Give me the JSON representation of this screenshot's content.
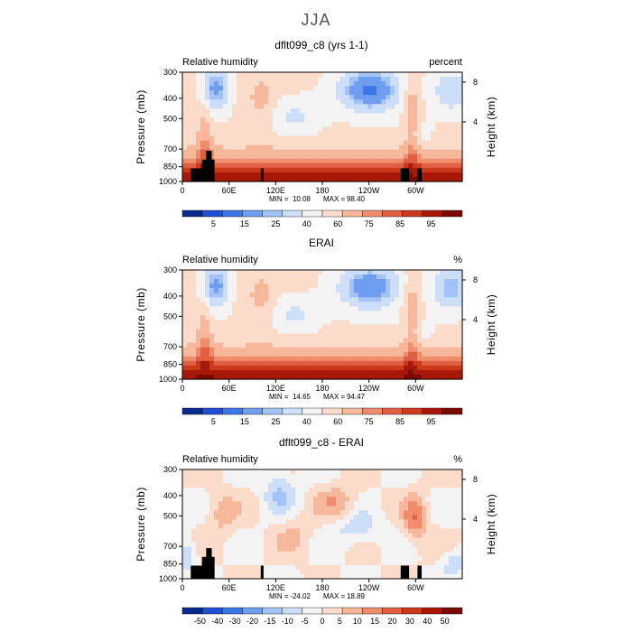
{
  "figure_title": "JJA",
  "colors": {
    "abs_palette": [
      "#0a2a8c",
      "#1f4fd0",
      "#3d77e6",
      "#6f9ef0",
      "#a3c2f5",
      "#cddff8",
      "#f3f3f3",
      "#fbdccb",
      "#f6b79a",
      "#ee8c6c",
      "#e05f42",
      "#cc3a1e",
      "#a81808",
      "#7a0a02"
    ],
    "diff_palette": [
      "#0a2a8c",
      "#1f4fd0",
      "#3d77e6",
      "#6f9ef0",
      "#a3c2f5",
      "#cddff8",
      "#f3f3f3",
      "#fbdccb",
      "#f6b79a",
      "#ee8c6c",
      "#e05f42",
      "#cc3a1e",
      "#a81808",
      "#7a0a02"
    ],
    "terrain": "#000000"
  },
  "chart_data": [
    {
      "type": "heatmap",
      "title": "dflt099_c8 (yrs 1-1)",
      "left_label": "Relative humidity",
      "right_label": "percent",
      "ylabel": "Pressure (mb)",
      "y2label": "Height (km)",
      "x_ticks": [
        "0",
        "60E",
        "120E",
        "180",
        "120W",
        "60W"
      ],
      "y_ticks": [
        "300",
        "400",
        "500",
        "700",
        "850",
        "1000"
      ],
      "y2_ticks": [
        "8",
        "4"
      ],
      "stats": {
        "min_label": "MIN =",
        "min": "10.08",
        "max_label": "MAX =",
        "max": "98.40"
      },
      "colorbar_labels": [
        "5",
        "15",
        "25",
        "40",
        "60",
        "75",
        "85",
        "95"
      ]
    },
    {
      "type": "heatmap",
      "title": "ERAI",
      "left_label": "Relative humidity",
      "right_label": "%",
      "ylabel": "Pressure (mb)",
      "y2label": "Height (km)",
      "x_ticks": [
        "0",
        "60E",
        "120E",
        "180",
        "120W",
        "60W"
      ],
      "y_ticks": [
        "300",
        "400",
        "500",
        "700",
        "850",
        "1000"
      ],
      "y2_ticks": [
        "8",
        "4"
      ],
      "stats": {
        "min_label": "MIN =",
        "min": "14.65",
        "max_label": "MAX =",
        "max": "94.47"
      },
      "colorbar_labels": [
        "5",
        "15",
        "25",
        "40",
        "60",
        "75",
        "85",
        "95"
      ]
    },
    {
      "type": "heatmap",
      "title": "dflt099_c8 - ERAI",
      "left_label": "Relative humidity",
      "right_label": "%",
      "ylabel": "Pressure (mb)",
      "y2label": "Height (km)",
      "x_ticks": [
        "0",
        "60E",
        "120E",
        "180",
        "120W",
        "60W"
      ],
      "y_ticks": [
        "300",
        "400",
        "500",
        "700",
        "850",
        "1000"
      ],
      "y2_ticks": [
        "8",
        "4"
      ],
      "stats": {
        "min_label": "MIN =",
        "min": "-24.02",
        "max_label": "MAX =",
        "max": "18.89"
      },
      "colorbar_labels": [
        "-50",
        "-40",
        "-30",
        "-20",
        "-15",
        "-10",
        "-5",
        "0",
        "5",
        "10",
        "15",
        "20",
        "30",
        "40",
        "50"
      ]
    }
  ]
}
